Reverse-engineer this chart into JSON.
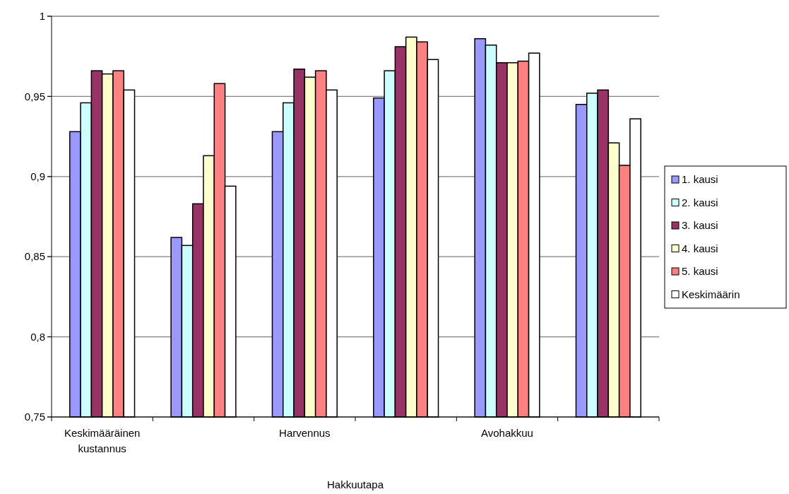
{
  "chart_data": {
    "type": "bar",
    "xlabel": "Hakkuutapa",
    "categories": [
      "Keskimääräinen kustannus",
      null,
      "Harvennus",
      null,
      "Avohakkuu",
      null
    ],
    "series": [
      {
        "name": "1. kausi",
        "color": "#9999ff",
        "values": [
          0.928,
          0.862,
          0.928,
          0.949,
          0.986,
          0.945
        ]
      },
      {
        "name": "2. kausi",
        "color": "#ccffff",
        "values": [
          0.946,
          0.857,
          0.946,
          0.966,
          0.982,
          0.952
        ]
      },
      {
        "name": "3. kausi",
        "color": "#993366",
        "values": [
          0.966,
          0.883,
          0.967,
          0.981,
          0.971,
          0.954
        ]
      },
      {
        "name": "4. kausi",
        "color": "#ffffcc",
        "values": [
          0.964,
          0.913,
          0.962,
          0.987,
          0.971,
          0.921
        ]
      },
      {
        "name": "5. kausi",
        "color": "#ff8080",
        "values": [
          0.966,
          0.958,
          0.966,
          0.984,
          0.972,
          0.907
        ]
      },
      {
        "name": "Keskimäärin",
        "color": "#ffffff",
        "values": [
          0.954,
          0.894,
          0.954,
          0.973,
          0.977,
          0.936
        ]
      }
    ],
    "ylim": [
      0.75,
      1
    ],
    "yticks": [
      {
        "value": 0.75,
        "label": "0,75"
      },
      {
        "value": 0.8,
        "label": "0,8"
      },
      {
        "value": 0.85,
        "label": "0,85"
      },
      {
        "value": 0.9,
        "label": "0,9"
      },
      {
        "value": 0.95,
        "label": "0,95"
      },
      {
        "value": 1,
        "label": "1"
      }
    ],
    "grid": "y",
    "legend": "right"
  }
}
